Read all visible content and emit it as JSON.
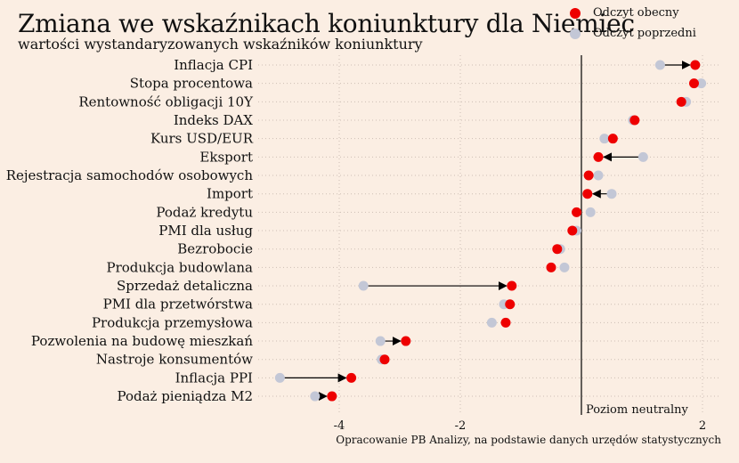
{
  "title": "Zmiana we wskaźnikach koniunktury dla Niemiec",
  "subtitle": "wartości wystandaryzowanych wskaźników koniunktury",
  "source": "Opracowanie PB Analizy, na podstawie danych urzędów statystycznych",
  "colors": {
    "current": "#ee0000",
    "previous": "#c3c7d6",
    "background": "#fbeee3",
    "grid": "#cdbfb4"
  },
  "chart_data": {
    "type": "scatter",
    "categories": [
      "Inflacja CPI",
      "Stopa procentowa",
      "Rentowność obligacji 10Y",
      "Indeks DAX",
      "Kurs USD/EUR",
      "Eksport",
      "Rejestracja samochodów osobowych",
      "Import",
      "Podaż kredytu",
      "PMI dla usług",
      "Bezrobocie",
      "Produkcja budowlana",
      "Sprzedaż detaliczna",
      "PMI dla przetwórstwa",
      "Produkcja przemysłowa",
      "Pozwolenia na budowę mieszkań",
      "Nastroje konsumentów",
      "Inflacja PPI",
      "Podaż pieniądza M2"
    ],
    "series": [
      {
        "name": "Odczyt obecny",
        "values": [
          1.88,
          1.86,
          1.65,
          0.88,
          0.52,
          0.28,
          0.12,
          0.1,
          -0.08,
          -0.15,
          -0.4,
          -0.5,
          -1.15,
          -1.18,
          -1.25,
          -2.9,
          -3.25,
          -3.8,
          -4.12
        ]
      },
      {
        "name": "Odczyt poprzedni",
        "values": [
          1.3,
          1.98,
          1.73,
          0.85,
          0.38,
          1.02,
          0.28,
          0.5,
          0.15,
          -0.08,
          -0.35,
          -0.28,
          -3.6,
          -1.28,
          -1.48,
          -3.32,
          -3.3,
          -4.98,
          -4.4
        ]
      }
    ],
    "arrow_rows": [
      0,
      5,
      7,
      12,
      15,
      17,
      18
    ],
    "x_ticks": [
      -4,
      -2,
      0,
      2
    ],
    "x_tick_labels": [
      "-4",
      "-2",
      "",
      "2"
    ],
    "xlim": [
      -5.3,
      2.2
    ],
    "neutral_label": "Poziom neutralny",
    "grid": true,
    "legend_position": "top-right"
  }
}
